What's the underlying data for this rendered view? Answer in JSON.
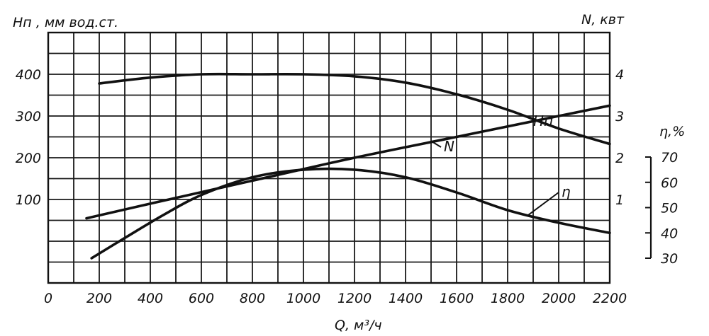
{
  "chart_data": {
    "type": "line",
    "x_axis": {
      "label": "Q, м³/ч",
      "ticks": [
        "0",
        "200",
        "400",
        "600",
        "800",
        "1000",
        "1200",
        "1400",
        "1600",
        "1800",
        "2000",
        "2200"
      ],
      "range": [
        0,
        2200
      ]
    },
    "y_axis_left": {
      "label": "Hп , мм вод.ст.",
      "ticks": [
        "100",
        "200",
        "300",
        "400"
      ],
      "range": [
        -100,
        500
      ]
    },
    "y_axis_right_power": {
      "label": "N, квт",
      "ticks": [
        "1",
        "2",
        "3",
        "4"
      ],
      "range": [
        -1,
        5
      ]
    },
    "y_axis_right_efficiency": {
      "label": "η,%",
      "ticks": [
        "30",
        "40",
        "50",
        "60",
        "70"
      ],
      "range": [
        30,
        70
      ]
    },
    "series": [
      {
        "name": "Hп",
        "axis": "left",
        "x": [
          200,
          400,
          600,
          800,
          1000,
          1200,
          1400,
          1600,
          1800,
          2000,
          2200
        ],
        "y": [
          378,
          392,
          400,
          400,
          400,
          395,
          380,
          352,
          315,
          270,
          233
        ]
      },
      {
        "name": "N",
        "axis": "right_power",
        "x": [
          150,
          400,
          800,
          1200,
          1600,
          2000,
          2200
        ],
        "y": [
          0.55,
          0.9,
          1.45,
          2.0,
          2.5,
          3.0,
          3.25
        ]
      },
      {
        "name": "η",
        "axis": "right_efficiency",
        "x": [
          170,
          300,
          450,
          600,
          800,
          1000,
          1200,
          1400,
          1600,
          1800,
          2000,
          2200
        ],
        "y": [
          30,
          38,
          47,
          55,
          62,
          65,
          65,
          62,
          56,
          49,
          44,
          40
        ]
      }
    ],
    "grid": true,
    "legend": "none"
  }
}
